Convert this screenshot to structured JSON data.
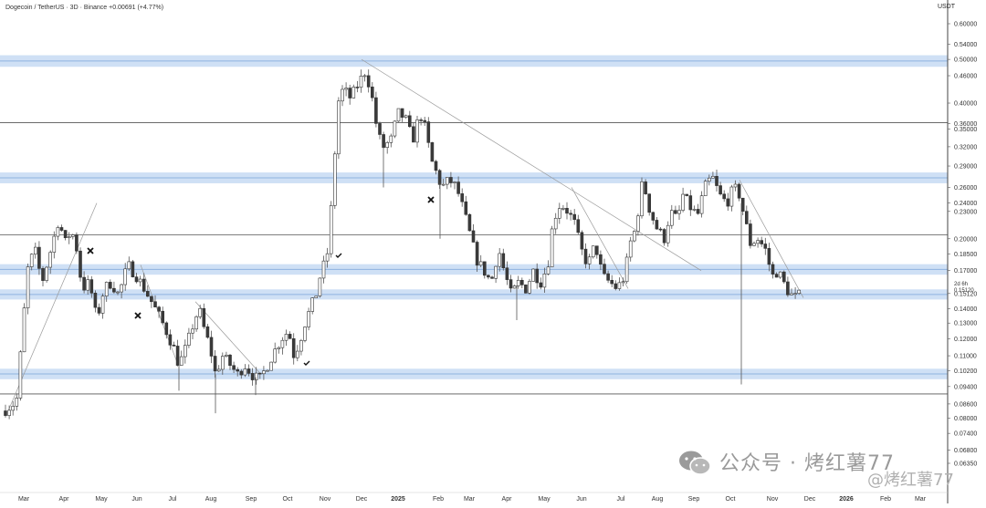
{
  "header": {
    "title": "Dogecoin / TetherUS · 3D · Binance",
    "change": "+0.00691 (+4.77%)"
  },
  "watermark": {
    "text1": "公众号 · 烤红薯77",
    "text2": "@烤红薯77"
  },
  "chart_data": {
    "type": "candlestick",
    "title": "Dogecoin / TetherUS · 3D · Binance",
    "y_unit": "USDT",
    "y_scale": "log",
    "ylim": [
      0.06,
      0.66
    ],
    "y_ticks": [
      "0.60000",
      "0.54000",
      "0.50000",
      "0.46000",
      "0.40000",
      "0.36000",
      "0.35000",
      "0.32000",
      "0.29000",
      "0.26000",
      "0.24000",
      "0.23000",
      "0.20000",
      "0.18500",
      "0.17000",
      "0.15120",
      "0.14000",
      "0.13000",
      "0.12000",
      "0.11000",
      "0.10200",
      "0.09400",
      "0.08600",
      "0.08000",
      "0.07400",
      "0.06800",
      "0.06350"
    ],
    "y_tick_values": [
      0.6,
      0.54,
      0.5,
      0.46,
      0.4,
      0.36,
      0.35,
      0.32,
      0.29,
      0.26,
      0.24,
      0.23,
      0.2,
      0.185,
      0.17,
      0.1512,
      0.14,
      0.13,
      0.12,
      0.11,
      0.102,
      0.094,
      0.086,
      0.08,
      0.074,
      0.068,
      0.0635
    ],
    "x_ticks": [
      "Mar",
      "Apr",
      "May",
      "Jun",
      "Jul",
      "Aug",
      "Sep",
      "Oct",
      "Nov",
      "Dec",
      "2025",
      "Feb",
      "Mar",
      "Apr",
      "May",
      "Jun",
      "Jul",
      "Aug",
      "Sep",
      "Oct",
      "Nov",
      "Dec",
      "2026",
      "Feb",
      "Mar"
    ],
    "x_tick_pos": [
      26,
      70,
      111,
      150,
      189,
      231,
      275,
      315,
      356,
      396,
      436,
      480,
      514,
      555,
      596,
      637,
      680,
      720,
      760,
      800,
      846,
      887,
      927,
      970,
      1008
    ],
    "zones": [
      {
        "low": 0.486,
        "high": 0.506
      },
      {
        "low": 0.268,
        "high": 0.278
      },
      {
        "low": 0.168,
        "high": 0.174
      },
      {
        "low": 0.148,
        "high": 0.153
      },
      {
        "low": 0.0985,
        "high": 0.102
      }
    ],
    "levels": [
      0.362,
      0.204,
      0.0905
    ],
    "annotations": [
      {
        "label": "2d 6h"
      },
      {
        "label": "0.15120"
      }
    ],
    "trendlines": [
      {
        "from": [
          0.083,
          9
        ],
        "to": [
          0.24,
          106
        ]
      },
      {
        "from": [
          0.5,
          396
        ],
        "to": [
          0.17,
          768
        ]
      },
      {
        "from": [
          0.26,
          626
        ],
        "to": [
          0.155,
          688
        ]
      },
      {
        "from": [
          0.175,
          154
        ],
        "to": [
          0.105,
          195
        ]
      },
      {
        "from": [
          0.145,
          214
        ],
        "to": [
          0.1,
          286
        ]
      },
      {
        "from": [
          0.27,
          810
        ],
        "to": [
          0.148,
          880
        ]
      }
    ],
    "marks": [
      {
        "type": "x"
      },
      {
        "type": "x"
      },
      {
        "type": "check"
      },
      {
        "type": "check"
      },
      {
        "type": "x"
      }
    ],
    "candle_colors": {
      "up": "#ffffff",
      "down": "#3a3a3a",
      "wick": "#555555"
    },
    "anchors": [
      [
        4,
        0.083
      ],
      [
        18,
        0.087
      ],
      [
        24,
        0.12
      ],
      [
        30,
        0.17
      ],
      [
        38,
        0.19
      ],
      [
        46,
        0.16
      ],
      [
        56,
        0.19
      ],
      [
        64,
        0.22
      ],
      [
        72,
        0.195
      ],
      [
        78,
        0.21
      ],
      [
        84,
        0.19
      ],
      [
        90,
        0.155
      ],
      [
        98,
        0.16
      ],
      [
        106,
        0.132
      ],
      [
        114,
        0.155
      ],
      [
        122,
        0.16
      ],
      [
        130,
        0.15
      ],
      [
        140,
        0.175
      ],
      [
        150,
        0.165
      ],
      [
        158,
        0.155
      ],
      [
        166,
        0.145
      ],
      [
        174,
        0.135
      ],
      [
        182,
        0.125
      ],
      [
        190,
        0.115
      ],
      [
        196,
        0.105
      ],
      [
        204,
        0.115
      ],
      [
        212,
        0.13
      ],
      [
        218,
        0.14
      ],
      [
        224,
        0.125
      ],
      [
        230,
        0.115
      ],
      [
        236,
        0.1
      ],
      [
        244,
        0.11
      ],
      [
        252,
        0.105
      ],
      [
        260,
        0.1
      ],
      [
        268,
        0.105
      ],
      [
        276,
        0.1
      ],
      [
        284,
        0.097
      ],
      [
        292,
        0.104
      ],
      [
        300,
        0.112
      ],
      [
        308,
        0.12
      ],
      [
        316,
        0.125
      ],
      [
        322,
        0.11
      ],
      [
        328,
        0.118
      ],
      [
        334,
        0.13
      ],
      [
        340,
        0.14
      ],
      [
        346,
        0.15
      ],
      [
        352,
        0.17
      ],
      [
        358,
        0.18
      ],
      [
        364,
        0.25
      ],
      [
        370,
        0.4
      ],
      [
        376,
        0.43
      ],
      [
        384,
        0.41
      ],
      [
        392,
        0.44
      ],
      [
        400,
        0.47
      ],
      [
        406,
        0.43
      ],
      [
        414,
        0.34
      ],
      [
        420,
        0.32
      ],
      [
        428,
        0.33
      ],
      [
        436,
        0.38
      ],
      [
        444,
        0.37
      ],
      [
        452,
        0.33
      ],
      [
        460,
        0.38
      ],
      [
        466,
        0.35
      ],
      [
        472,
        0.3
      ],
      [
        478,
        0.28
      ],
      [
        484,
        0.26
      ],
      [
        492,
        0.27
      ],
      [
        500,
        0.26
      ],
      [
        508,
        0.23
      ],
      [
        516,
        0.2
      ],
      [
        522,
        0.18
      ],
      [
        530,
        0.17
      ],
      [
        538,
        0.16
      ],
      [
        546,
        0.19
      ],
      [
        552,
        0.17
      ],
      [
        560,
        0.15
      ],
      [
        568,
        0.16
      ],
      [
        576,
        0.155
      ],
      [
        584,
        0.17
      ],
      [
        592,
        0.16
      ],
      [
        600,
        0.175
      ],
      [
        606,
        0.22
      ],
      [
        614,
        0.24
      ],
      [
        622,
        0.23
      ],
      [
        630,
        0.215
      ],
      [
        636,
        0.19
      ],
      [
        644,
        0.175
      ],
      [
        652,
        0.195
      ],
      [
        660,
        0.165
      ],
      [
        668,
        0.16
      ],
      [
        676,
        0.155
      ],
      [
        684,
        0.165
      ],
      [
        690,
        0.195
      ],
      [
        696,
        0.21
      ],
      [
        704,
        0.27
      ],
      [
        712,
        0.23
      ],
      [
        720,
        0.21
      ],
      [
        728,
        0.2
      ],
      [
        734,
        0.23
      ],
      [
        742,
        0.22
      ],
      [
        748,
        0.25
      ],
      [
        756,
        0.235
      ],
      [
        764,
        0.225
      ],
      [
        772,
        0.26
      ],
      [
        780,
        0.275
      ],
      [
        788,
        0.25
      ],
      [
        796,
        0.24
      ],
      [
        804,
        0.26
      ],
      [
        810,
        0.25
      ],
      [
        816,
        0.22
      ],
      [
        822,
        0.195
      ],
      [
        830,
        0.2
      ],
      [
        838,
        0.19
      ],
      [
        846,
        0.165
      ],
      [
        852,
        0.17
      ],
      [
        858,
        0.16
      ],
      [
        864,
        0.152
      ],
      [
        870,
        0.148
      ],
      [
        876,
        0.15
      ]
    ]
  }
}
